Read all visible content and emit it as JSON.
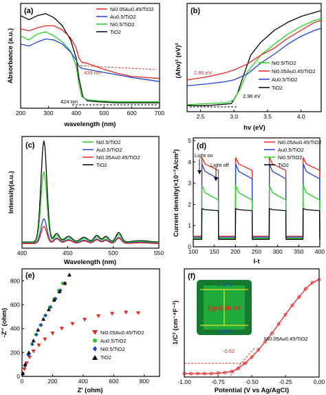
{
  "colors": {
    "red": "#e8231e",
    "blue": "#1f3fd8",
    "green": "#22d11e",
    "black": "#000000"
  },
  "chart_data": [
    {
      "panel": "(a)",
      "type": "line",
      "xlabel": "wavelength (nm)",
      "ylabel": "Absorbance (a.u.)",
      "xlim": [
        200,
        700
      ],
      "xticks": [
        200,
        300,
        400,
        500,
        600,
        700
      ],
      "legend": [
        "Ni0.05Au0.45/TiO2",
        "Au0.5/TiO2",
        "Ni0.5/TiO2",
        "TiO2"
      ],
      "annotations": [
        "439 nm",
        "424 nm"
      ],
      "series": [
        {
          "name": "Ni0.05Au0.45/TiO2",
          "color": "red",
          "x": [
            200,
            230,
            260,
            290,
            320,
            350,
            380,
            400,
            410,
            420,
            439,
            460,
            500,
            550,
            600,
            650,
            700
          ],
          "y": [
            0.77,
            0.75,
            0.78,
            0.8,
            0.8,
            0.76,
            0.68,
            0.58,
            0.48,
            0.44,
            0.43,
            0.41,
            0.37,
            0.33,
            0.3,
            0.29,
            0.28
          ]
        },
        {
          "name": "Au0.5/TiO2",
          "color": "blue",
          "x": [
            200,
            230,
            260,
            290,
            320,
            350,
            380,
            400,
            410,
            420,
            440,
            480,
            520,
            560,
            600,
            650,
            700
          ],
          "y": [
            0.62,
            0.6,
            0.64,
            0.67,
            0.66,
            0.62,
            0.54,
            0.46,
            0.4,
            0.38,
            0.37,
            0.35,
            0.33,
            0.31,
            0.29,
            0.27,
            0.25
          ]
        },
        {
          "name": "Ni0.5/TiO2",
          "color": "green",
          "x": [
            200,
            230,
            260,
            290,
            320,
            350,
            380,
            400,
            410,
            420,
            440,
            480,
            550,
            620,
            700
          ],
          "y": [
            0.7,
            0.66,
            0.72,
            0.74,
            0.7,
            0.64,
            0.55,
            0.4,
            0.22,
            0.1,
            0.07,
            0.06,
            0.05,
            0.05,
            0.05
          ]
        },
        {
          "name": "TiO2",
          "color": "black",
          "x": [
            200,
            230,
            260,
            290,
            320,
            350,
            380,
            400,
            410,
            424,
            440,
            480,
            550,
            620,
            700
          ],
          "y": [
            0.9,
            0.86,
            0.9,
            0.92,
            0.88,
            0.8,
            0.66,
            0.48,
            0.28,
            0.1,
            0.06,
            0.05,
            0.04,
            0.04,
            0.04
          ]
        }
      ]
    },
    {
      "panel": "(b)",
      "type": "line",
      "xlabel": "hv (eV)",
      "ylabel": "(Ahv)² (eV)²",
      "xlim": [
        2.3,
        4.3
      ],
      "xticks": [
        2.5,
        3.0,
        3.5,
        4.0
      ],
      "legend": [
        "Ni0.5/TiO2",
        "Ni0.05Au0.45/TiO2",
        "Au0.5/TiO2",
        "TiO2"
      ],
      "annotations": [
        "2.86 eV",
        "2.96 eV"
      ],
      "series": [
        {
          "name": "Ni0.05Au0.45/TiO2",
          "color": "red",
          "x": [
            2.3,
            2.6,
            2.86,
            3.0,
            3.2,
            3.4,
            3.6,
            3.8,
            4.0,
            4.2,
            4.3
          ],
          "y": [
            0.3,
            0.33,
            0.37,
            0.4,
            0.46,
            0.55,
            0.62,
            0.72,
            0.8,
            0.88,
            0.9
          ]
        },
        {
          "name": "Au0.5/TiO2",
          "color": "blue",
          "x": [
            2.3,
            2.6,
            2.86,
            3.0,
            3.2,
            3.4,
            3.6,
            3.8,
            4.0,
            4.2,
            4.3
          ],
          "y": [
            0.24,
            0.26,
            0.28,
            0.3,
            0.36,
            0.47,
            0.56,
            0.66,
            0.74,
            0.8,
            0.82
          ]
        },
        {
          "name": "Ni0.5/TiO2",
          "color": "green",
          "x": [
            2.3,
            2.6,
            2.9,
            3.0,
            3.1,
            3.2,
            3.4,
            3.6,
            3.8,
            4.0,
            4.2,
            4.3
          ],
          "y": [
            0.05,
            0.06,
            0.07,
            0.1,
            0.22,
            0.38,
            0.55,
            0.66,
            0.76,
            0.84,
            0.9,
            0.92
          ]
        },
        {
          "name": "TiO2",
          "color": "black",
          "x": [
            2.3,
            2.6,
            2.96,
            3.05,
            3.15,
            3.25,
            3.4,
            3.6,
            3.8,
            4.0,
            4.2,
            4.3
          ],
          "y": [
            0.04,
            0.04,
            0.06,
            0.16,
            0.36,
            0.55,
            0.68,
            0.8,
            0.88,
            0.94,
            0.98,
            1.0
          ]
        }
      ]
    },
    {
      "panel": "(c)",
      "type": "line",
      "xlabel": "Wavelength (nm)",
      "ylabel": "Intensity(a.u.)",
      "xlim": [
        400,
        550
      ],
      "xticks": [
        400,
        450,
        500,
        550
      ],
      "legend": [
        "Ni0.5/TiO2",
        "Au0.5/TiO2",
        "Ni0.05Au0.45/TiO2",
        "TiO2"
      ],
      "series": [
        {
          "name": "TiO2",
          "color": "black",
          "amp": 1.0,
          "base": 0.04
        },
        {
          "name": "Ni0.5/TiO2",
          "color": "green",
          "amp": 0.7,
          "base": 0.035
        },
        {
          "name": "Au0.5/TiO2",
          "color": "blue",
          "amp": 0.24,
          "base": 0.03
        },
        {
          "name": "Ni0.05Au0.45/TiO2",
          "color": "red",
          "amp": 0.17,
          "base": 0.025
        }
      ]
    },
    {
      "panel": "(d)",
      "type": "line",
      "xlabel": "I-t",
      "ylabel": "Current density(×10⁻³A/cm²)",
      "xlim": [
        100,
        400
      ],
      "ylim": [
        0,
        5
      ],
      "xticks": [
        100,
        150,
        200,
        250,
        300,
        350,
        400
      ],
      "yticks": [
        0,
        1,
        2,
        3,
        4,
        5
      ],
      "legend": [
        "Ni0.05Au0.45/TiO2",
        "Au0.5/TiO2",
        "Ni0.5/TiO2",
        "TiO2"
      ],
      "annotations": [
        "Light on",
        "Light off"
      ],
      "light_periods": [
        [
          120,
          160
        ],
        [
          200,
          240
        ],
        [
          280,
          320
        ],
        [
          360,
          400
        ]
      ],
      "series": [
        {
          "name": "Ni0.05Au0.45/TiO2",
          "color": "red",
          "on": 3.6,
          "peak": 4.2,
          "off": 0.5
        },
        {
          "name": "Au0.5/TiO2",
          "color": "blue",
          "on": 3.2,
          "peak": 3.9,
          "off": 0.45
        },
        {
          "name": "Ni0.5/TiO2",
          "color": "green",
          "on": 2.2,
          "peak": 2.9,
          "off": 0.4
        },
        {
          "name": "TiO2",
          "color": "black",
          "on": 1.7,
          "peak": 1.8,
          "off": 0.35
        }
      ]
    },
    {
      "panel": "(e)",
      "type": "scatter",
      "xlabel": "Z' (ohm)",
      "ylabel": "-Z'' (ohm)",
      "xlim": [
        0,
        900
      ],
      "ylim": [
        0,
        900
      ],
      "xticks": [
        0,
        200,
        400,
        600,
        800
      ],
      "yticks": [
        0,
        200,
        400,
        600,
        800
      ],
      "legend": [
        "Ni0.05Au0.45/TiO2",
        "Au0.5/TiO2",
        "Ni0.5/TiO2",
        "TiO2"
      ],
      "series": [
        {
          "name": "Ni0.05Au0.45/TiO2",
          "color": "red",
          "marker": "tri-down",
          "x": [
            5,
            15,
            30,
            50,
            75,
            110,
            150,
            200,
            260,
            330,
            410,
            500,
            590,
            680,
            760
          ],
          "y": [
            20,
            60,
            110,
            160,
            210,
            260,
            310,
            360,
            400,
            440,
            475,
            505,
            525,
            535,
            530
          ]
        },
        {
          "name": "Au0.5/TiO2",
          "color": "green",
          "marker": "circle",
          "x": [
            5,
            20,
            40,
            65,
            90,
            120,
            150,
            180,
            210,
            240,
            265
          ],
          "y": [
            20,
            90,
            180,
            270,
            350,
            430,
            510,
            580,
            650,
            720,
            780
          ]
        },
        {
          "name": "Ni0.5/TiO2",
          "color": "blue",
          "marker": "diamond",
          "x": [
            5,
            20,
            42,
            68,
            95,
            125,
            155,
            188,
            220,
            252,
            282
          ],
          "y": [
            20,
            90,
            180,
            270,
            350,
            430,
            510,
            580,
            650,
            720,
            780
          ]
        },
        {
          "name": "TiO2",
          "color": "black",
          "marker": "tri-up",
          "x": [
            5,
            20,
            45,
            75,
            105,
            140,
            175,
            210,
            245,
            280,
            310
          ],
          "y": [
            25,
            100,
            200,
            300,
            390,
            480,
            560,
            640,
            710,
            780,
            850
          ]
        }
      ]
    },
    {
      "panel": "(f)",
      "type": "line",
      "xlabel": "Potential (V vs Ag/AgCl)",
      "ylabel": "1/C² (cm⁻⁴F⁻²)",
      "xlim": [
        -1.0,
        0.0
      ],
      "xticks": [
        "-1.00",
        "-0.75",
        "-0.50",
        "-0.25",
        "0.00"
      ],
      "annotations": [
        "-0.62",
        "Ni0.05Au0.45/TiO2"
      ],
      "inset": {
        "top": "-0.52 V",
        "middle": "Eg=2.86 eV",
        "bottom": "+2.34 V"
      },
      "series": [
        {
          "name": "Ni0.05Au0.45/TiO2",
          "color": "red",
          "x": [
            -1.0,
            -0.95,
            -0.9,
            -0.85,
            -0.8,
            -0.75,
            -0.7,
            -0.65,
            -0.6,
            -0.55,
            -0.5,
            -0.45,
            -0.4,
            -0.35,
            -0.3,
            -0.25,
            -0.2,
            -0.15,
            -0.1,
            -0.05,
            0.0
          ],
          "y": [
            0.02,
            0.02,
            0.02,
            0.02,
            0.02,
            0.025,
            0.03,
            0.04,
            0.07,
            0.12,
            0.18,
            0.25,
            0.33,
            0.41,
            0.5,
            0.59,
            0.68,
            0.76,
            0.84,
            0.9,
            0.93
          ]
        }
      ]
    }
  ],
  "labels": {
    "a": {
      "letter": "(a)",
      "ylabel": "Absorbance (a.u.)",
      "xlabel": "wavelength (nm)",
      "ann1": "439 nm",
      "ann2": "424 nm",
      "leg": [
        "Ni0.05Au0.45/TiO2",
        "Au0.5/TiO2",
        "Ni0.5/TiO2",
        "TiO2"
      ],
      "ticks": [
        "200",
        "300",
        "400",
        "500",
        "600",
        "700"
      ]
    },
    "b": {
      "letter": "(b)",
      "ylabel": "(Ahv)² (eV)²",
      "xlabel": "hv (eV)",
      "ann1": "2.86 eV",
      "ann2": "2.96 eV",
      "leg": [
        "Ni0.5/TiO2",
        "Ni0.05Au0.45/TiO2",
        "Au0.5/TiO2",
        "TiO2"
      ],
      "ticks": [
        "2.5",
        "3.0",
        "3.5",
        "4.0"
      ]
    },
    "c": {
      "letter": "(c)",
      "ylabel": "Intensity(a.u.)",
      "xlabel": "Wavelength (nm)",
      "leg": [
        "Ni0.5/TiO2",
        "Au0.5/TiO2",
        "Ni0.05Au0.45/TiO2",
        "TiO2"
      ],
      "ticks": [
        "400",
        "450",
        "500",
        "550"
      ]
    },
    "d": {
      "letter": "(d)",
      "ylabel": "Current density(×10⁻³A/cm²)",
      "xlabel": "I-t",
      "ann1": "Light on",
      "ann2": "Light off",
      "leg": [
        "Ni0.05Au0.45/TiO2",
        "Au0.5/TiO2",
        "Ni0.5/TiO2",
        "TiO2"
      ],
      "xticks": [
        "100",
        "150",
        "200",
        "250",
        "300",
        "350",
        "400"
      ],
      "yticks": [
        "0",
        "1",
        "2",
        "3",
        "4",
        "5"
      ]
    },
    "e": {
      "letter": "(e)",
      "ylabel": "-Z'' (ohm)",
      "xlabel": "Z' (ohm)",
      "leg": [
        "Ni0.05Au0.45/TiO2",
        "Au0.5/TiO2",
        "Ni0.5/TiO2",
        "TiO2"
      ],
      "xticks": [
        "0",
        "200",
        "400",
        "600",
        "800"
      ],
      "yticks": [
        "0",
        "200",
        "400",
        "600",
        "800"
      ]
    },
    "f": {
      "letter": "(f)",
      "ylabel": "1/C² (cm⁻⁴F⁻²)",
      "xlabel": "Potential (V vs Ag/AgCl)",
      "ann1": "-0.62",
      "ann2": "Ni0.05Au0.45/TiO2",
      "inset_top": "-0.52 V",
      "inset_mid": "Eg=2.86 eV",
      "inset_bot": "+2.34 V",
      "ticks": [
        "-1.00",
        "-0.75",
        "-0.50",
        "-0.25",
        "0.00"
      ]
    }
  }
}
